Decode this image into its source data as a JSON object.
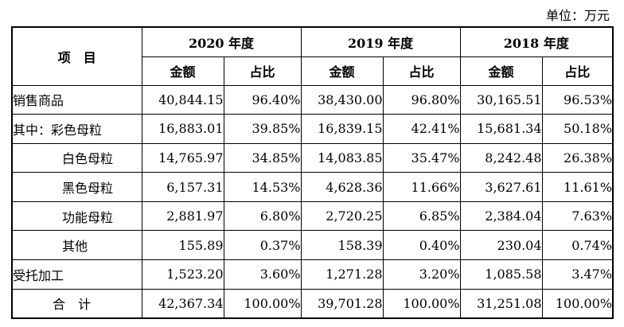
{
  "unit_label": "单位：万元",
  "headers": {
    "item": "项　目",
    "years": [
      "2020 年度",
      "2019 年度",
      "2018 年度"
    ],
    "amount": "金额",
    "ratio": "占比"
  },
  "rows": [
    {
      "label": "销售商品",
      "values": [
        "40,844.15",
        "96.40%",
        "38,430.00",
        "96.80%",
        "30,165.51",
        "96.53%"
      ]
    },
    {
      "label": "其中：彩色母粒",
      "values": [
        "16,883.01",
        "39.85%",
        "16,839.15",
        "42.41%",
        "15,681.34",
        "50.18%"
      ]
    },
    {
      "label": "白色母粒",
      "values": [
        "14,765.97",
        "34.85%",
        "14,083.85",
        "35.47%",
        "8,242.48",
        "26.38%"
      ]
    },
    {
      "label": "黑色母粒",
      "values": [
        "6,157.31",
        "14.53%",
        "4,628.36",
        "11.66%",
        "3,627.61",
        "11.61%"
      ]
    },
    {
      "label": "功能母粒",
      "values": [
        "2,881.97",
        "6.80%",
        "2,720.25",
        "6.85%",
        "2,384.04",
        "7.63%"
      ]
    },
    {
      "label": "其他",
      "values": [
        "155.89",
        "0.37%",
        "158.39",
        "0.40%",
        "230.04",
        "0.74%"
      ]
    },
    {
      "label": "受托加工",
      "values": [
        "1,523.20",
        "3.60%",
        "1,271.28",
        "3.20%",
        "1,085.58",
        "3.47%"
      ]
    },
    {
      "label": "合　计",
      "values": [
        "42,367.34",
        "100.00%",
        "39,701.28",
        "100.00%",
        "31,251.08",
        "100.00%"
      ]
    }
  ]
}
